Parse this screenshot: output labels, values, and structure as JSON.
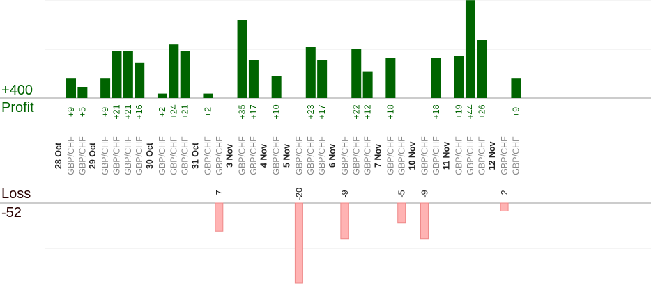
{
  "chart_data": {
    "type": "bar",
    "profit_total_label": "+400",
    "profit_label": "Profit",
    "loss_label": "Loss",
    "loss_total_label": "-52",
    "colors": {
      "profit": "#006400",
      "loss": "#ffb3b3",
      "loss_stroke": "#ee8888",
      "axis": "#999999",
      "grid": "#e8e8e8"
    },
    "groups": [
      {
        "date": "28 Oct",
        "trades": [
          {
            "symbol": "GBP/CHF",
            "label": "+9",
            "value": 9
          },
          {
            "symbol": "GBP/CHF",
            "label": "+5",
            "value": 5
          }
        ]
      },
      {
        "date": "29 Oct",
        "trades": [
          {
            "symbol": "GBP/CHF",
            "label": "+9",
            "value": 9
          },
          {
            "symbol": "GBP/CHF",
            "label": "+21",
            "value": 21
          },
          {
            "symbol": "GBP/CHF",
            "label": "+21",
            "value": 21
          },
          {
            "symbol": "GBP/CHF",
            "label": "+16",
            "value": 16
          }
        ]
      },
      {
        "date": "30 Oct",
        "trades": [
          {
            "symbol": "GBP/CHF",
            "label": "+2",
            "value": 2
          },
          {
            "symbol": "GBP/CHF",
            "label": "+24",
            "value": 24
          },
          {
            "symbol": "GBP/CHF",
            "label": "+21",
            "value": 21
          }
        ]
      },
      {
        "date": "31 Oct",
        "trades": [
          {
            "symbol": "GBP/CHF",
            "label": "+2",
            "value": 2
          },
          {
            "symbol": "GBP/CHF",
            "label": "-7",
            "value": -7
          }
        ]
      },
      {
        "date": "3 Nov",
        "trades": [
          {
            "symbol": "GBP/CHF",
            "label": "+35",
            "value": 35
          },
          {
            "symbol": "GBP/CHF",
            "label": "+17",
            "value": 17
          }
        ]
      },
      {
        "date": "4 Nov",
        "trades": [
          {
            "symbol": "GBP/CHF",
            "label": "+10",
            "value": 10
          }
        ]
      },
      {
        "date": "5 Nov",
        "trades": [
          {
            "symbol": "GBP/CHF",
            "label": "-20",
            "value": -20
          },
          {
            "symbol": "GBP/CHF",
            "label": "+23",
            "value": 23
          },
          {
            "symbol": "GBP/CHF",
            "label": "+17",
            "value": 17
          }
        ]
      },
      {
        "date": "6 Nov",
        "trades": [
          {
            "symbol": "GBP/CHF",
            "label": "-9",
            "value": -9
          },
          {
            "symbol": "GBP/CHF",
            "label": "+22",
            "value": 22
          },
          {
            "symbol": "GBP/CHF",
            "label": "+12",
            "value": 12
          }
        ]
      },
      {
        "date": "7 Nov",
        "trades": [
          {
            "symbol": "GBP/CHF",
            "label": "+18",
            "value": 18
          },
          {
            "symbol": "GBP/CHF",
            "label": "-5",
            "value": -5
          }
        ]
      },
      {
        "date": "10 Nov",
        "trades": [
          {
            "symbol": "GBP/CHF",
            "label": "-9",
            "value": -9
          },
          {
            "symbol": "GBP/CHF",
            "label": "+18",
            "value": 18
          }
        ]
      },
      {
        "date": "11 Nov",
        "trades": [
          {
            "symbol": "GBP/CHF",
            "label": "+19",
            "value": 19
          },
          {
            "symbol": "GBP/CHF",
            "label": "+44",
            "value": 44
          },
          {
            "symbol": "GBP/CHF",
            "label": "+26",
            "value": 26
          }
        ]
      },
      {
        "date": "12 Nov",
        "trades": [
          {
            "symbol": "GBP/CHF",
            "label": "-2",
            "value": -2
          },
          {
            "symbol": "GBP/CHF",
            "label": "+9",
            "value": 9
          }
        ]
      }
    ]
  }
}
